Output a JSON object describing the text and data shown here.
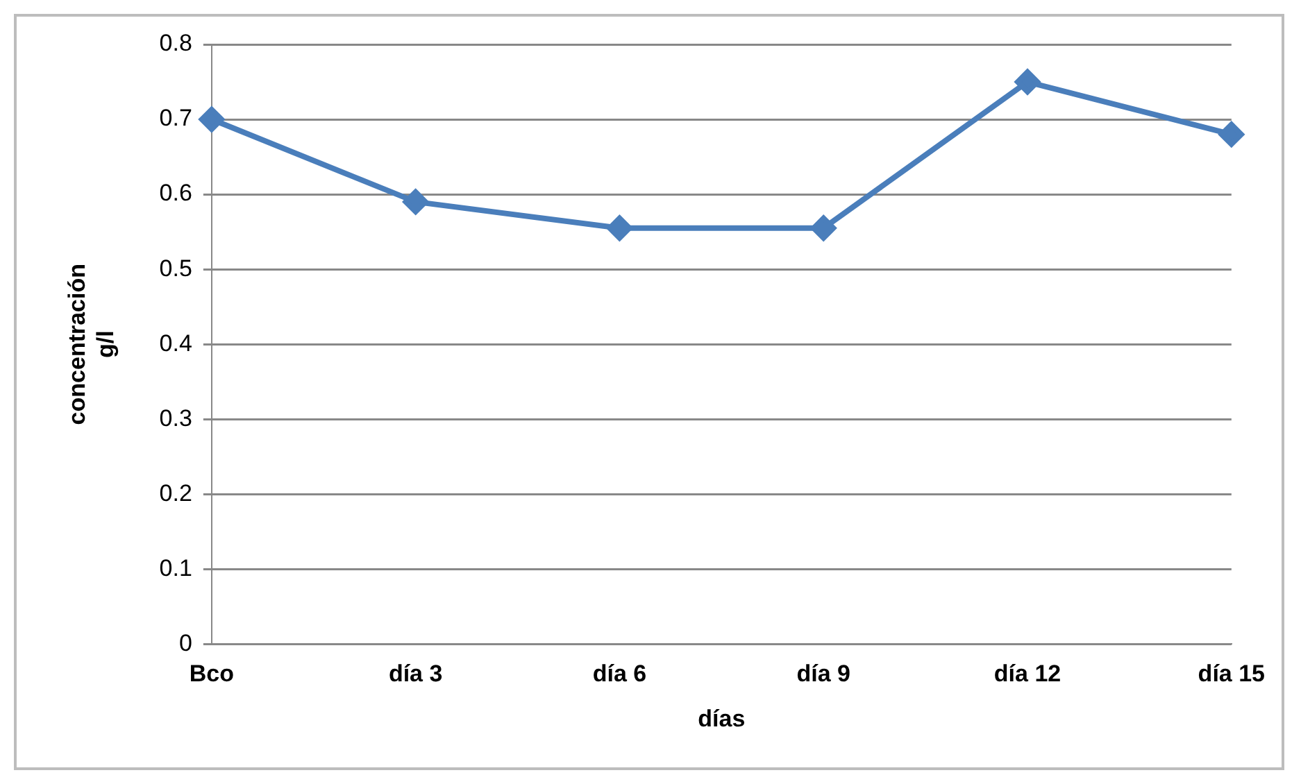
{
  "chart_data": {
    "type": "line",
    "xlabel": "días",
    "ylabel": "concentración\ng/l",
    "categories": [
      "Bco",
      "día 3",
      "día 6",
      "día 9",
      "día 12",
      "día 15"
    ],
    "series": [
      {
        "color": "#4a7ebb",
        "values": [
          0.7,
          0.59,
          0.555,
          0.555,
          0.75,
          0.68
        ]
      }
    ],
    "ylim": [
      0,
      0.8
    ],
    "yticks": [
      0,
      0.1,
      0.2,
      0.3,
      0.4,
      0.5,
      0.6,
      0.7,
      0.8
    ],
    "grid": "y",
    "legend": false,
    "marker": "diamond",
    "line_style": "solid"
  }
}
